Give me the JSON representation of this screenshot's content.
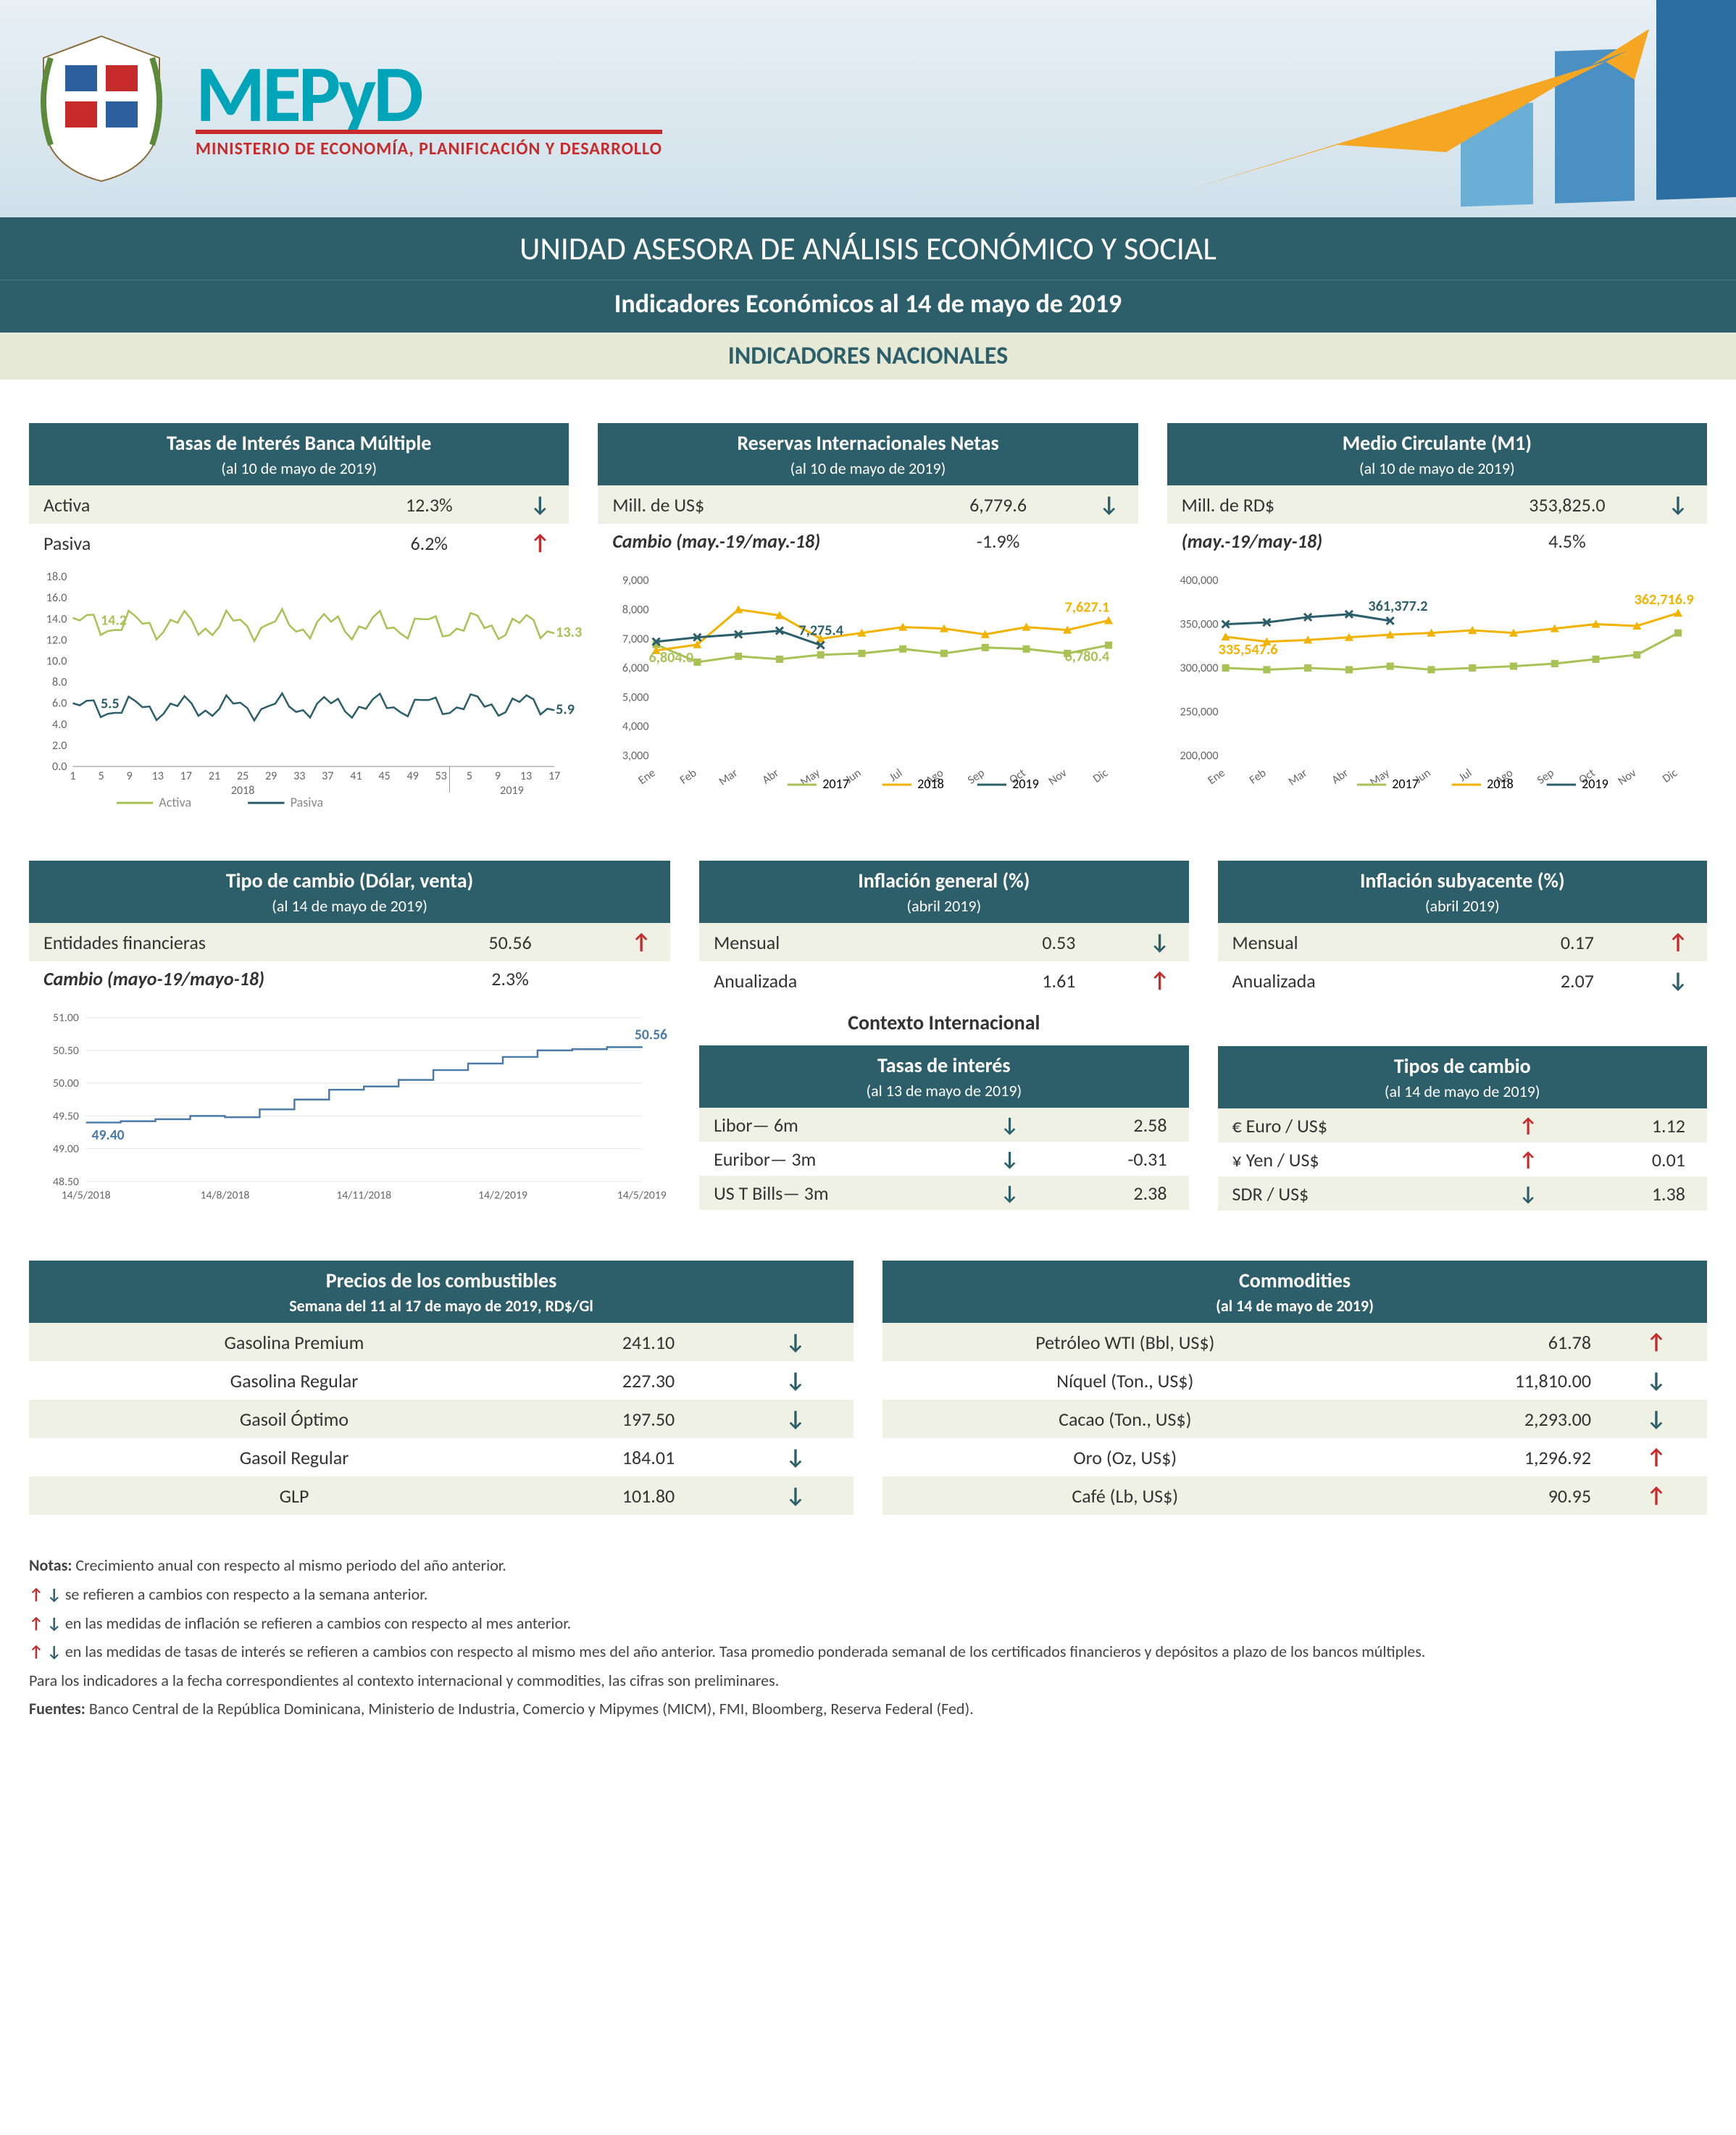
{
  "brand": {
    "name": "MEPyD",
    "sub": "MINISTERIO DE ECONOMÍA, PLANIFICACIÓN Y DESARROLLO"
  },
  "title": "UNIDAD ASESORA DE ANÁLISIS ECONÓMICO Y SOCIAL",
  "subtitle": "Indicadores Económicos al  14 de mayo de 2019",
  "section": "INDICADORES NACIONALES",
  "tasas": {
    "title": "Tasas de Interés Banca Múltiple",
    "date": "(al 10 de mayo de 2019)",
    "rows": [
      {
        "label": "Activa",
        "val": "12.3%",
        "dir": "down"
      },
      {
        "label": "Pasiva",
        "val": "6.2%",
        "dir": "up"
      }
    ],
    "chart": {
      "ylim": [
        0,
        18
      ],
      "ytick_step": 2,
      "activa_color": "#a8c256",
      "pasiva_color": "#2d5f6b",
      "annot_activa_start": "14.2",
      "annot_activa_end": "13.3",
      "annot_pasiva_start": "5.5",
      "annot_pasiva_end": "5.9",
      "x_year1": "2018",
      "x_year2": "2019",
      "x_ticks": [
        "1",
        "5",
        "9",
        "13",
        "17",
        "21",
        "25",
        "29",
        "33",
        "37",
        "41",
        "45",
        "49",
        "53",
        "5",
        "9",
        "13",
        "17"
      ],
      "legend": [
        "Activa",
        "Pasiva"
      ]
    }
  },
  "reservas": {
    "title": "Reservas Internacionales Netas",
    "date": "(al 10 de mayo de 2019)",
    "rows": [
      {
        "label": "Mill. de US$",
        "val": "6,779.6",
        "dir": "down"
      },
      {
        "label": "Cambio (may.-19/may.-18)",
        "val": "-1.9%",
        "dir": "",
        "italic": true
      }
    ],
    "chart": {
      "ylim": [
        3000,
        9000
      ],
      "ytick_step": 1000,
      "months": [
        "Ene",
        "Feb",
        "Mar",
        "Abr",
        "May",
        "Jun",
        "Jul",
        "Ago",
        "Sep",
        "Oct",
        "Nov",
        "Dic"
      ],
      "s2017": {
        "color": "#a8c256",
        "label": "2017",
        "vals": [
          6804,
          6200,
          6400,
          6300,
          6450,
          6500,
          6650,
          6500,
          6700,
          6650,
          6500,
          6780
        ],
        "annot_start": "6,804.0",
        "annot_end": "6,780.4"
      },
      "s2018": {
        "color": "#f2b200",
        "label": "2018",
        "vals": [
          6600,
          6800,
          8000,
          7800,
          7000,
          7200,
          7400,
          7350,
          7150,
          7400,
          7300,
          7627
        ],
        "annot_end": "7,627.1"
      },
      "s2019": {
        "color": "#2d5f6b",
        "label": "2019",
        "vals": [
          6900,
          7050,
          7150,
          7275,
          6780
        ],
        "annot": "7,275.4"
      }
    }
  },
  "m1": {
    "title": "Medio Circulante (M1)",
    "date": "(al 10 de mayo de 2019)",
    "rows": [
      {
        "label": "Mill. de RD$",
        "val": "353,825.0",
        "dir": "down"
      },
      {
        "label": "(may.-19/may-18)",
        "val": "4.5%",
        "dir": "",
        "italic": true
      }
    ],
    "chart": {
      "ylim": [
        200000,
        400000
      ],
      "ytick_step": 50000,
      "months": [
        "Ene",
        "Feb",
        "Mar",
        "Abr",
        "May",
        "Jun",
        "Jul",
        "Ago",
        "Sep",
        "Oct",
        "Nov",
        "Dic"
      ],
      "s2017": {
        "color": "#a8c256",
        "label": "2017",
        "vals": [
          300000,
          298000,
          300000,
          298000,
          302000,
          298000,
          300000,
          302000,
          305000,
          310000,
          315000,
          340000
        ]
      },
      "s2018": {
        "color": "#f2b200",
        "label": "2018",
        "vals": [
          335548,
          330000,
          332000,
          335000,
          338000,
          340000,
          343000,
          340000,
          345000,
          350000,
          348000,
          362717
        ],
        "annot_start": "335,547.6",
        "annot_end": "362,716.9"
      },
      "s2019": {
        "color": "#2d5f6b",
        "label": "2019",
        "vals": [
          350000,
          352000,
          358000,
          361377,
          353825
        ],
        "annot": "361,377.2"
      }
    }
  },
  "tipocambio": {
    "title": "Tipo de cambio (Dólar, venta)",
    "date": "(al 14 de mayo de 2019)",
    "rows": [
      {
        "label": "Entidades financieras",
        "val": "50.56",
        "dir": "up"
      },
      {
        "label": "Cambio (mayo-19/mayo-18)",
        "val": "2.3%",
        "dir": "",
        "italic": true
      }
    ],
    "chart": {
      "ylim": [
        48.5,
        51.0
      ],
      "ytick_step": 0.5,
      "color": "#4a7aa8",
      "x_ticks": [
        "14/5/2018",
        "14/8/2018",
        "14/11/2018",
        "14/2/2019",
        "14/5/2019"
      ],
      "annot_start": "49.40",
      "annot_end": "50.56",
      "vals": [
        49.4,
        49.42,
        49.45,
        49.5,
        49.48,
        49.6,
        49.75,
        49.9,
        49.95,
        50.05,
        50.2,
        50.3,
        50.4,
        50.5,
        50.52,
        50.55,
        50.56
      ]
    }
  },
  "infl_gen": {
    "title": "Inflación general (%)",
    "date": "(abril 2019)",
    "rows": [
      {
        "label": "Mensual",
        "val": "0.53",
        "dir": "down"
      },
      {
        "label": "Anualizada",
        "val": "1.61",
        "dir": "up"
      }
    ]
  },
  "infl_sub": {
    "title": "Inflación subyacente (%)",
    "date": "(abril 2019)",
    "rows": [
      {
        "label": "Mensual",
        "val": "0.17",
        "dir": "up"
      },
      {
        "label": "Anualizada",
        "val": "2.07",
        "dir": "down"
      }
    ]
  },
  "contexto": {
    "title": "Contexto Internacional",
    "tasas": {
      "title": "Tasas de interés",
      "date": "(al 13 de mayo de 2019)",
      "rows": [
        {
          "label": "Libor— 6m",
          "dir": "down",
          "val": "2.58"
        },
        {
          "label": "Euribor— 3m",
          "dir": "down",
          "val": "-0.31"
        },
        {
          "label": "US T Bills— 3m",
          "dir": "down",
          "val": "2.38"
        }
      ]
    },
    "tipos": {
      "title": "Tipos de cambio",
      "date": "(al 14 de mayo de 2019)",
      "rows": [
        {
          "label": "€ Euro / US$",
          "dir": "up",
          "val": "1.12"
        },
        {
          "label": "¥ Yen / US$",
          "dir": "up",
          "val": "0.01"
        },
        {
          "label": "SDR / US$",
          "dir": "down",
          "val": "1.38"
        }
      ]
    }
  },
  "combustibles": {
    "title": "Precios de los combustibles",
    "date": "Semana del 11 al 17 de mayo de 2019, RD$/Gl",
    "rows": [
      {
        "label": "Gasolina Premium",
        "val": "241.10",
        "dir": "down"
      },
      {
        "label": "Gasolina Regular",
        "val": "227.30",
        "dir": "down"
      },
      {
        "label": "Gasoil Óptimo",
        "val": "197.50",
        "dir": "down"
      },
      {
        "label": "Gasoil Regular",
        "val": "184.01",
        "dir": "down"
      },
      {
        "label": "GLP",
        "val": "101.80",
        "dir": "down"
      }
    ]
  },
  "commodities": {
    "title": "Commodities",
    "date": "(al 14 de mayo de 2019)",
    "rows": [
      {
        "label": "Petróleo WTI (Bbl, US$)",
        "val": "61.78",
        "dir": "up"
      },
      {
        "label": "Níquel (Ton., US$)",
        "val": "11,810.00",
        "dir": "down"
      },
      {
        "label": "Cacao (Ton., US$)",
        "val": "2,293.00",
        "dir": "down"
      },
      {
        "label": "Oro (Oz, US$)",
        "val": "1,296.92",
        "dir": "up"
      },
      {
        "label": "Café (Lb, US$)",
        "val": "90.95",
        "dir": "up"
      }
    ]
  },
  "notes": {
    "n1": "Crecimiento anual con respecto al mismo periodo del año anterior.",
    "n2": "se refieren a cambios con respecto a la semana anterior.",
    "n3": "en las medidas de inflación se refieren a cambios con respecto al mes anterior.",
    "n4": "en las medidas de tasas de interés se refieren a cambios con respecto al mismo mes del año anterior. Tasa promedio ponderada semanal de los certificados financieros y depósitos a plazo de los bancos múltiples.",
    "n5": "Para los indicadores a la fecha correspondientes al contexto internacional y commodities, las cifras son preliminares.",
    "n6": "Banco Central de la República Dominicana, Ministerio de Industria, Comercio y Mipymes (MICM), FMI, Bloomberg, Reserva Federal (Fed).",
    "lead_notas": "Notas:",
    "lead_fuentes": "Fuentes:"
  }
}
